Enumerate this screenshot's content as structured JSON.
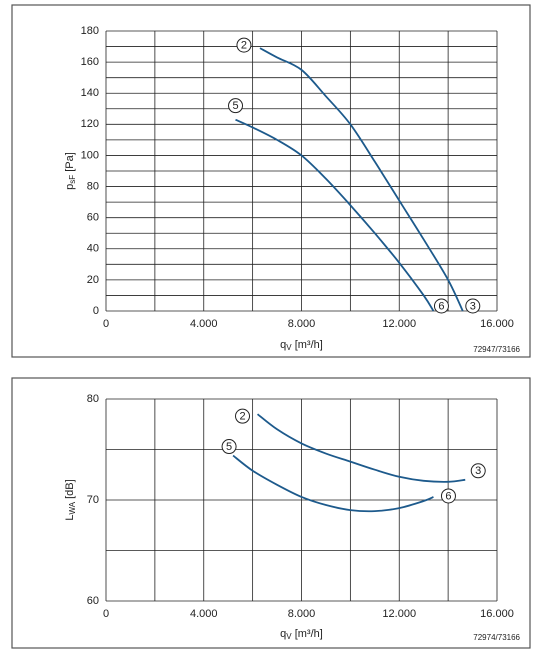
{
  "chart_data": [
    {
      "type": "line",
      "code": "72947/73166",
      "y_label": {
        "symbol": "p",
        "subscript": "sF",
        "unit": "[Pa]"
      },
      "x_label": {
        "symbol": "q",
        "subscript": "V",
        "unit": "[m³/h]"
      },
      "xlim": [
        0,
        16000
      ],
      "ylim": [
        0,
        180
      ],
      "xticks": [
        0,
        {
          "value": 4000,
          "label": "4.000"
        },
        {
          "value": 8000,
          "label": "8.000"
        },
        {
          "value": 12000,
          "label": "12.000"
        },
        {
          "value": 16000,
          "label": "16.000"
        }
      ],
      "x_minor_ticks": [
        2000,
        6000,
        10000,
        14000
      ],
      "yticks": [
        0,
        20,
        40,
        60,
        80,
        100,
        120,
        140,
        160,
        180
      ],
      "y_minor_ticks": [
        10,
        30,
        50,
        70,
        90,
        110,
        130,
        150,
        170
      ],
      "series": [
        {
          "labels": [
            "2",
            "3"
          ],
          "color": "#1d5a8c",
          "x": [
            6300,
            7000,
            8000,
            9000,
            10000,
            11000,
            12000,
            13000,
            14000,
            14600
          ],
          "values": [
            169,
            163,
            155,
            138,
            120,
            96,
            71,
            46,
            20,
            0
          ]
        },
        {
          "labels": [
            "5",
            "6"
          ],
          "color": "#1d5a8c",
          "x": [
            5300,
            6000,
            7000,
            8000,
            9000,
            10000,
            11000,
            12000,
            13000,
            13400
          ],
          "values": [
            123,
            118,
            110,
            100,
            85,
            68,
            50,
            31,
            10,
            0
          ]
        }
      ]
    },
    {
      "type": "line",
      "code": "72974/73166",
      "y_label": {
        "symbol": "L",
        "subscript": "WA",
        "unit": "[dB]"
      },
      "x_label": {
        "symbol": "q",
        "subscript": "V",
        "unit": "[m³/h]"
      },
      "xlim": [
        0,
        16000
      ],
      "ylim": [
        60,
        80
      ],
      "xticks": [
        0,
        {
          "value": 4000,
          "label": "4.000"
        },
        {
          "value": 8000,
          "label": "8.000"
        },
        {
          "value": 12000,
          "label": "12.000"
        },
        {
          "value": 16000,
          "label": "16.000"
        }
      ],
      "x_minor_ticks": [
        2000,
        6000,
        10000,
        14000
      ],
      "yticks": [
        60,
        70,
        80
      ],
      "y_minor_ticks": [
        65,
        75
      ],
      "series": [
        {
          "labels": [
            "2",
            "3"
          ],
          "color": "#1d5a8c",
          "x": [
            6200,
            7000,
            8000,
            9000,
            10000,
            11000,
            12000,
            13000,
            14000,
            14700
          ],
          "values": [
            78.5,
            77,
            75.6,
            74.6,
            73.8,
            73,
            72.3,
            71.9,
            71.8,
            72
          ]
        },
        {
          "labels": [
            "5",
            "6"
          ],
          "color": "#1d5a8c",
          "x": [
            5200,
            6000,
            7000,
            8000,
            9000,
            10000,
            11000,
            12000,
            13000,
            13400
          ],
          "values": [
            74.4,
            72.9,
            71.5,
            70.3,
            69.5,
            69,
            68.9,
            69.2,
            69.9,
            70.3
          ]
        }
      ]
    }
  ]
}
